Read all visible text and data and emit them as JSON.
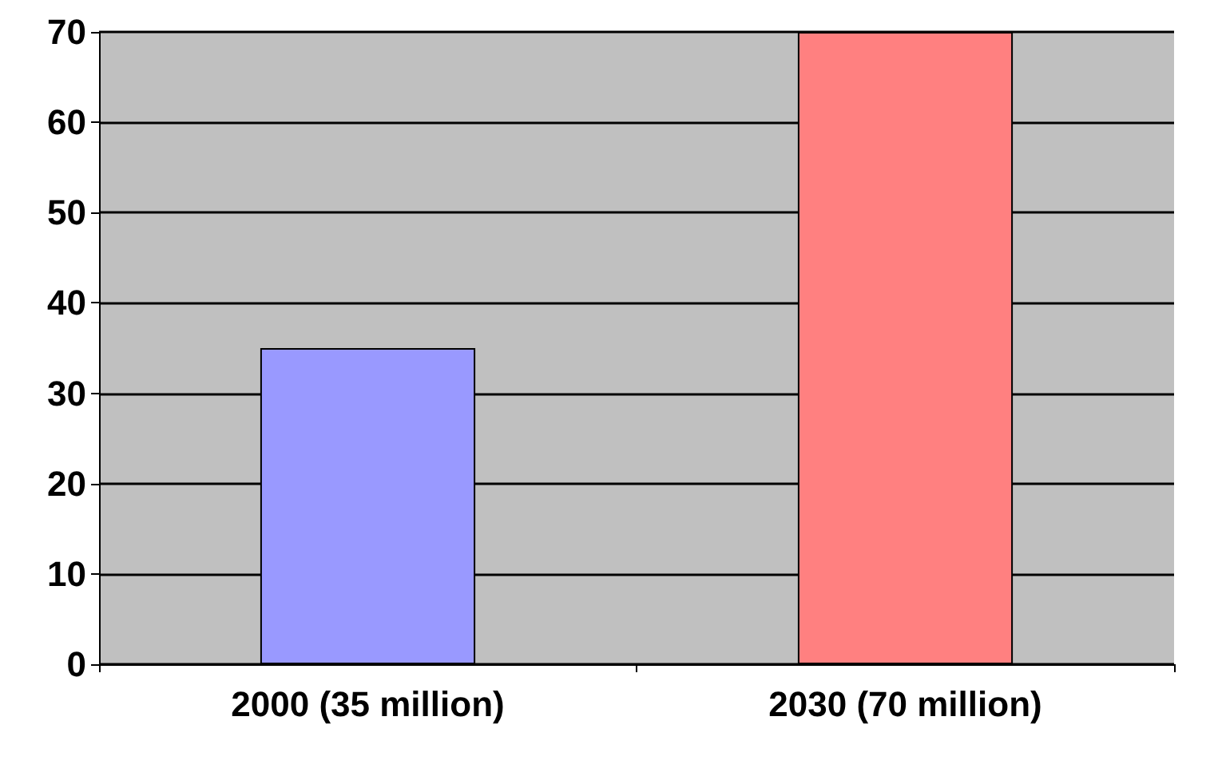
{
  "chart_data": {
    "type": "bar",
    "categories": [
      "2000 (35 million)",
      "2030 (70 million)"
    ],
    "values": [
      35,
      70
    ],
    "colors": [
      "#9999ff",
      "#ff8080"
    ],
    "ylim": [
      0,
      70
    ],
    "yticks": [
      0,
      10,
      20,
      30,
      40,
      50,
      60,
      70
    ],
    "grid": "y"
  }
}
